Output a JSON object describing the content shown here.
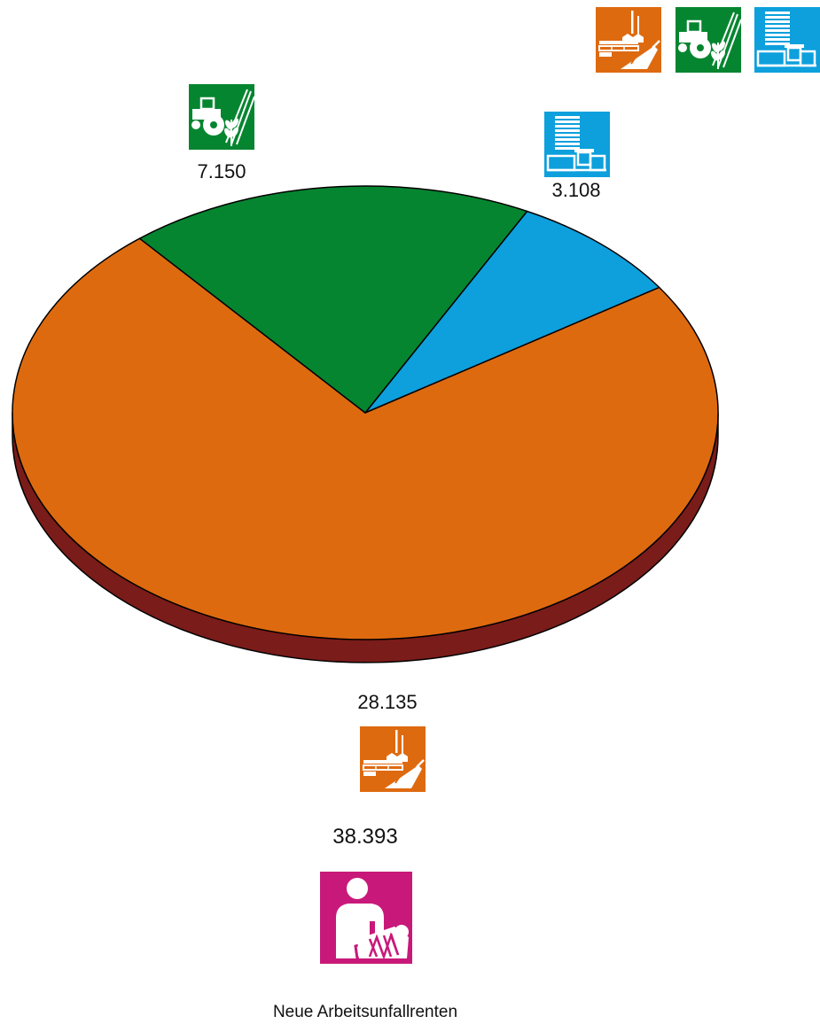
{
  "chart_data": {
    "type": "pie",
    "style": "3d",
    "slices": [
      {
        "category": "industry",
        "value": 28135,
        "label": "28.135",
        "color": "#de6a10",
        "icon": "factory-construction-icon"
      },
      {
        "category": "agriculture",
        "value": 7150,
        "label": "7.150",
        "color": "#068530",
        "icon": "tractor-wheat-icon"
      },
      {
        "category": "public-sector",
        "value": 3108,
        "label": "3.108",
        "color": "#0da0dc",
        "icon": "office-building-icon"
      }
    ],
    "side_color": "#7a1c1a",
    "legend": {
      "placement": "top-right",
      "icons": [
        "factory-construction-icon",
        "tractor-wheat-icon",
        "office-building-icon"
      ]
    },
    "total": {
      "value": 38393,
      "label": "38.393",
      "icon": "injured-person-icon",
      "color": "#c8197a",
      "caption": "Neue Arbeitsunfallrenten"
    }
  }
}
